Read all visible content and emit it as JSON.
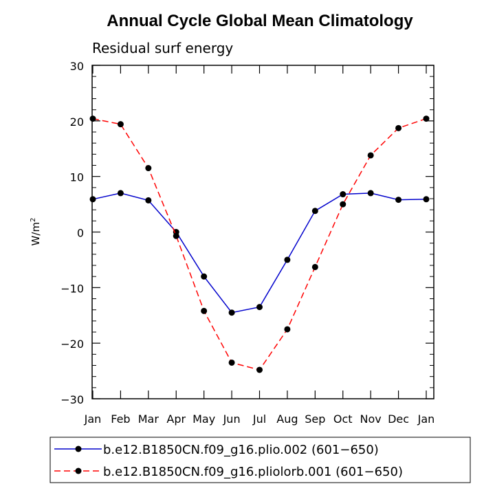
{
  "chart_data": {
    "type": "line",
    "title": "Annual Cycle Global Mean Climatology",
    "subtitle": "Residual surf energy",
    "ylabel": "W/m",
    "ylabel_sup": "2",
    "xlabel": "",
    "categories": [
      "Jan",
      "Feb",
      "Mar",
      "Apr",
      "May",
      "Jun",
      "Jul",
      "Aug",
      "Sep",
      "Oct",
      "Nov",
      "Dec",
      "Jan"
    ],
    "ylim": [
      -30,
      30
    ],
    "yticks": [
      -30,
      -20,
      -10,
      0,
      10,
      20,
      30
    ],
    "ytick_labels": [
      "−30",
      "−20",
      "−10",
      "0",
      "10",
      "20",
      "30"
    ],
    "grid": false,
    "legend_position": "bottom",
    "series": [
      {
        "name": "b.e12.B1850CN.f09_g16.plio.002 (601−650)",
        "color": "#0000cc",
        "dash": "solid",
        "values": [
          5.9,
          7.0,
          5.7,
          0.0,
          -8.0,
          -14.5,
          -13.5,
          -5.0,
          3.8,
          6.8,
          7.0,
          5.8,
          5.9
        ]
      },
      {
        "name": "b.e12.B1850CN.f09_g16.pliolorb.001 (601−650)",
        "color": "#ff0000",
        "dash": "dashed",
        "values": [
          20.4,
          19.4,
          11.5,
          -0.7,
          -14.2,
          -23.5,
          -24.8,
          -17.5,
          -6.3,
          5.0,
          13.8,
          18.7,
          20.4
        ]
      }
    ]
  }
}
